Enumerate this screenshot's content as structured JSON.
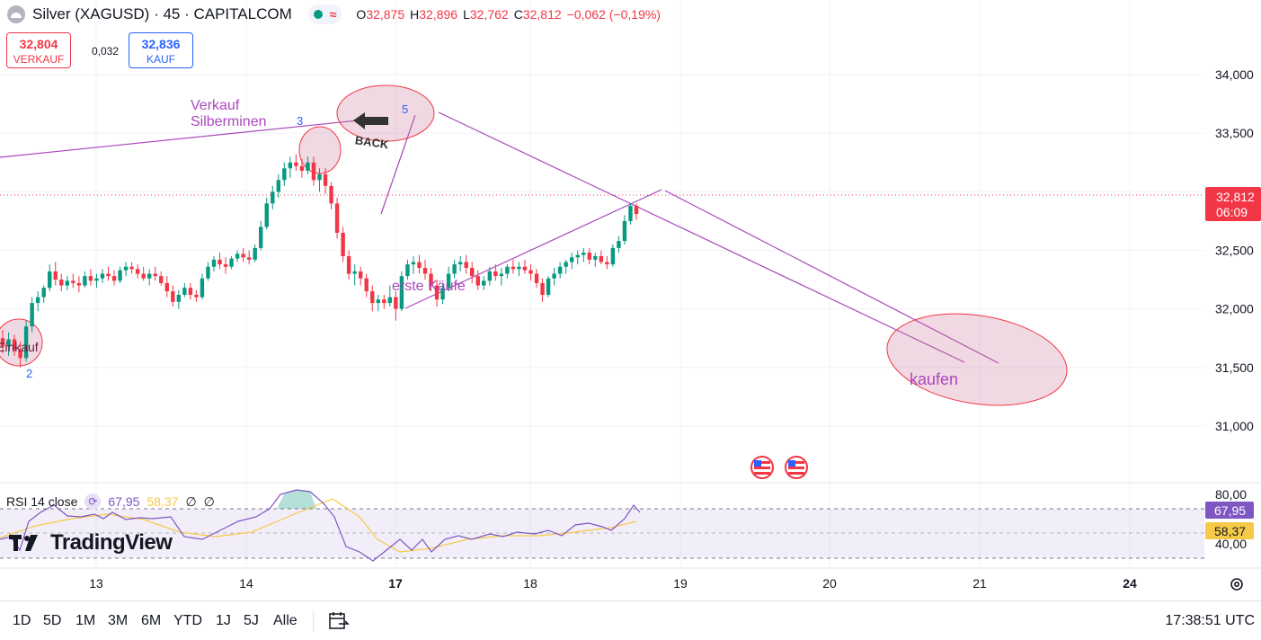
{
  "header": {
    "title": "Silver (XAGUSD) · 45 · CAPITALCOM",
    "ohlc": [
      {
        "k": "O",
        "v": "32,875"
      },
      {
        "k": "H",
        "v": "32,896"
      },
      {
        "k": "L",
        "v": "32,762"
      },
      {
        "k": "C",
        "v": "32,812"
      }
    ],
    "change": "−0,062 (−0,19%)"
  },
  "trade": {
    "sell_price": "32,804",
    "sell_label": "VERKAUF",
    "spread": "0,032",
    "buy_price": "32,836",
    "buy_label": "KAUF"
  },
  "rsi": {
    "title": "RSI 14 close",
    "value": "67,95",
    "ma": "58,37",
    "na1": "∅",
    "na2": "∅",
    "tag_value": "67,95",
    "tag_ma": "58,37",
    "levels": [
      "80,00",
      "40,00"
    ]
  },
  "price_axis": [
    "34,000",
    "33,500",
    "33,000",
    "32,500",
    "32,000",
    "31,500",
    "31,000"
  ],
  "last_price": {
    "value": "32,812",
    "countdown": "06:09"
  },
  "time_axis": [
    "13",
    "14",
    "17",
    "18",
    "19",
    "20",
    "21",
    "24"
  ],
  "annotations": {
    "verkauf": [
      "Verkauf",
      "Silberminen"
    ],
    "erste": "erste Käufe",
    "einkauf": "Einkauf",
    "kaufen": "kaufen",
    "back": "BACK",
    "n2": "2",
    "n3": "3",
    "n5": "5"
  },
  "logo": "TradingView",
  "bottom": {
    "ranges": [
      "1D",
      "5D",
      "1M",
      "3M",
      "6M",
      "YTD",
      "1J",
      "5J",
      "Alle"
    ],
    "clock": "17:38:51 UTC"
  },
  "colors": {
    "up": "#089981",
    "down": "#f23645",
    "rsi": "#7e57c2",
    "rsi_ma": "#f7c948",
    "annotation": "#ab47bc"
  },
  "chart_data": {
    "type": "candlestick",
    "ylim": [
      30.6,
      34.3
    ],
    "candles_ohlc": [
      [
        31.75,
        31.82,
        31.62,
        31.68
      ],
      [
        31.68,
        31.8,
        31.6,
        31.74
      ],
      [
        31.74,
        31.78,
        31.6,
        31.65
      ],
      [
        31.65,
        31.72,
        31.5,
        31.58
      ],
      [
        31.58,
        31.9,
        31.55,
        31.85
      ],
      [
        31.85,
        32.1,
        31.8,
        32.05
      ],
      [
        32.05,
        32.15,
        31.98,
        32.1
      ],
      [
        32.1,
        32.2,
        32.05,
        32.18
      ],
      [
        32.18,
        32.38,
        32.15,
        32.32
      ],
      [
        32.32,
        32.4,
        32.2,
        32.25
      ],
      [
        32.25,
        32.3,
        32.15,
        32.2
      ],
      [
        32.2,
        32.28,
        32.16,
        32.24
      ],
      [
        32.24,
        32.3,
        32.18,
        32.22
      ],
      [
        32.22,
        32.28,
        32.14,
        32.2
      ],
      [
        32.2,
        32.32,
        32.18,
        32.28
      ],
      [
        32.28,
        32.34,
        32.2,
        32.24
      ],
      [
        32.24,
        32.3,
        32.18,
        32.26
      ],
      [
        32.26,
        32.34,
        32.22,
        32.3
      ],
      [
        32.3,
        32.36,
        32.24,
        32.28
      ],
      [
        32.28,
        32.33,
        32.2,
        32.24
      ],
      [
        32.24,
        32.36,
        32.22,
        32.33
      ],
      [
        32.33,
        32.4,
        32.28,
        32.36
      ],
      [
        32.36,
        32.4,
        32.3,
        32.34
      ],
      [
        32.34,
        32.38,
        32.26,
        32.3
      ],
      [
        32.3,
        32.36,
        32.24,
        32.26
      ],
      [
        32.26,
        32.34,
        32.2,
        32.3
      ],
      [
        32.3,
        32.36,
        32.24,
        32.28
      ],
      [
        32.28,
        32.32,
        32.2,
        32.22
      ],
      [
        32.22,
        32.28,
        32.1,
        32.15
      ],
      [
        32.15,
        32.2,
        32.02,
        32.06
      ],
      [
        32.06,
        32.16,
        32.0,
        32.12
      ],
      [
        32.12,
        32.22,
        32.1,
        32.18
      ],
      [
        32.18,
        32.22,
        32.08,
        32.12
      ],
      [
        32.12,
        32.16,
        32.06,
        32.1
      ],
      [
        32.1,
        32.3,
        32.08,
        32.26
      ],
      [
        32.26,
        32.4,
        32.24,
        32.36
      ],
      [
        32.36,
        32.45,
        32.32,
        32.42
      ],
      [
        32.42,
        32.48,
        32.34,
        32.38
      ],
      [
        32.38,
        32.44,
        32.3,
        32.36
      ],
      [
        32.36,
        32.45,
        32.34,
        32.43
      ],
      [
        32.43,
        32.5,
        32.4,
        32.47
      ],
      [
        32.47,
        32.52,
        32.4,
        32.44
      ],
      [
        32.44,
        32.5,
        32.38,
        32.42
      ],
      [
        32.42,
        32.55,
        32.4,
        32.52
      ],
      [
        32.52,
        32.75,
        32.5,
        32.7
      ],
      [
        32.7,
        32.95,
        32.68,
        32.9
      ],
      [
        32.9,
        33.05,
        32.85,
        33.0
      ],
      [
        33.0,
        33.15,
        32.95,
        33.1
      ],
      [
        33.1,
        33.25,
        33.05,
        33.2
      ],
      [
        33.2,
        33.3,
        33.12,
        33.25
      ],
      [
        33.25,
        33.32,
        33.18,
        33.22
      ],
      [
        33.22,
        33.28,
        33.12,
        33.18
      ],
      [
        33.18,
        33.3,
        33.15,
        33.25
      ],
      [
        33.25,
        33.3,
        33.05,
        33.1
      ],
      [
        33.1,
        33.2,
        33.0,
        33.15
      ],
      [
        33.15,
        33.2,
        32.98,
        33.05
      ],
      [
        33.05,
        33.08,
        32.85,
        32.9
      ],
      [
        32.9,
        32.95,
        32.6,
        32.65
      ],
      [
        32.65,
        32.7,
        32.4,
        32.45
      ],
      [
        32.45,
        32.5,
        32.25,
        32.3
      ],
      [
        32.3,
        32.38,
        32.2,
        32.32
      ],
      [
        32.32,
        32.36,
        32.2,
        32.26
      ],
      [
        32.26,
        32.3,
        32.1,
        32.15
      ],
      [
        32.15,
        32.2,
        31.98,
        32.05
      ],
      [
        32.05,
        32.12,
        31.98,
        32.08
      ],
      [
        32.08,
        32.12,
        32.0,
        32.05
      ],
      [
        32.05,
        32.2,
        32.02,
        32.1
      ],
      [
        32.1,
        32.15,
        31.9,
        32.0
      ],
      [
        32.0,
        32.32,
        31.98,
        32.28
      ],
      [
        32.28,
        32.42,
        32.25,
        32.38
      ],
      [
        32.38,
        32.45,
        32.3,
        32.4
      ],
      [
        32.4,
        32.46,
        32.3,
        32.35
      ],
      [
        32.35,
        32.42,
        32.25,
        32.3
      ],
      [
        32.3,
        32.35,
        32.15,
        32.2
      ],
      [
        32.2,
        32.25,
        32.02,
        32.08
      ],
      [
        32.08,
        32.22,
        32.04,
        32.18
      ],
      [
        32.18,
        32.36,
        32.15,
        32.3
      ],
      [
        32.3,
        32.42,
        32.26,
        32.38
      ],
      [
        32.38,
        32.45,
        32.32,
        32.4
      ],
      [
        32.4,
        32.46,
        32.3,
        32.35
      ],
      [
        32.35,
        32.4,
        32.22,
        32.28
      ],
      [
        32.28,
        32.33,
        32.16,
        32.2
      ],
      [
        32.2,
        32.28,
        32.16,
        32.24
      ],
      [
        32.24,
        32.36,
        32.2,
        32.32
      ],
      [
        32.32,
        32.38,
        32.24,
        32.28
      ],
      [
        32.28,
        32.35,
        32.2,
        32.3
      ],
      [
        32.3,
        32.38,
        32.26,
        32.36
      ],
      [
        32.36,
        32.42,
        32.3,
        32.34
      ],
      [
        32.34,
        32.4,
        32.28,
        32.36
      ],
      [
        32.36,
        32.42,
        32.3,
        32.33
      ],
      [
        32.33,
        32.38,
        32.24,
        32.3
      ],
      [
        32.3,
        32.34,
        32.18,
        32.22
      ],
      [
        32.22,
        32.26,
        32.06,
        32.12
      ],
      [
        32.12,
        32.28,
        32.1,
        32.26
      ],
      [
        32.26,
        32.35,
        32.2,
        32.3
      ],
      [
        32.3,
        32.4,
        32.26,
        32.36
      ],
      [
        32.36,
        32.42,
        32.3,
        32.4
      ],
      [
        32.4,
        32.48,
        32.34,
        32.44
      ],
      [
        32.44,
        32.5,
        32.38,
        32.46
      ],
      [
        32.46,
        32.52,
        32.4,
        32.48
      ],
      [
        32.48,
        32.52,
        32.38,
        32.42
      ],
      [
        32.42,
        32.48,
        32.36,
        32.45
      ],
      [
        32.45,
        32.5,
        32.38,
        32.4
      ],
      [
        32.4,
        32.45,
        32.34,
        32.38
      ],
      [
        32.38,
        32.55,
        32.36,
        32.52
      ],
      [
        32.52,
        32.62,
        32.48,
        32.58
      ],
      [
        32.58,
        32.8,
        32.55,
        32.75
      ],
      [
        32.75,
        32.9,
        32.72,
        32.88
      ],
      [
        32.88,
        32.9,
        32.76,
        32.81
      ]
    ]
  }
}
